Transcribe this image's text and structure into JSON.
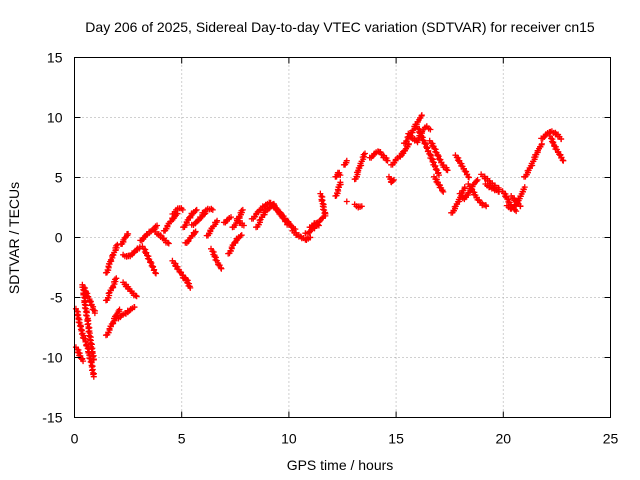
{
  "chart_data": {
    "type": "scatter",
    "title": "Day 206 of 2025, Sidereal Day-to-day VTEC variation (SDTVAR) for receiver cn15",
    "xlabel": "GPS time / hours",
    "ylabel": "SDTVAR / TECUs",
    "xlim": [
      0,
      25
    ],
    "ylim": [
      -15,
      15
    ],
    "xticks": [
      0,
      5,
      10,
      15,
      20,
      25
    ],
    "yticks": [
      -15,
      -10,
      -5,
      0,
      5,
      10,
      15
    ],
    "grid": true,
    "marker": "plus",
    "color": "#ff0000",
    "segments": [
      {
        "name": "seg-01",
        "x": [
          0.1,
          0.2,
          0.3,
          0.4,
          0.5,
          0.6,
          0.7,
          0.8,
          0.9
        ],
        "y": [
          -6.0,
          -6.8,
          -7.6,
          -8.2,
          -8.6,
          -9.1,
          -9.8,
          -10.6,
          -11.6
        ]
      },
      {
        "name": "seg-02",
        "x": [
          0.1,
          0.2,
          0.3,
          0.4
        ],
        "y": [
          -9.2,
          -9.6,
          -10.0,
          -10.3
        ]
      },
      {
        "name": "seg-03",
        "x": [
          0.4,
          0.5,
          0.6,
          0.7,
          0.8,
          0.9
        ],
        "y": [
          -4.2,
          -5.6,
          -6.8,
          -8.0,
          -9.2,
          -10.2
        ]
      },
      {
        "name": "seg-04",
        "x": [
          0.4,
          0.55,
          0.7,
          0.85,
          0.95
        ],
        "y": [
          -4.0,
          -4.6,
          -5.2,
          -5.8,
          -6.3
        ]
      },
      {
        "name": "seg-05",
        "x": [
          1.5,
          1.65,
          1.8,
          1.95,
          2.1
        ],
        "y": [
          -8.2,
          -7.6,
          -7.0,
          -6.5,
          -6.0
        ]
      },
      {
        "name": "seg-06",
        "x": [
          1.5,
          1.65,
          1.8,
          1.95
        ],
        "y": [
          -5.3,
          -4.6,
          -4.0,
          -3.4
        ]
      },
      {
        "name": "seg-07",
        "x": [
          1.5,
          1.6,
          1.7,
          1.8,
          1.9,
          2.0
        ],
        "y": [
          -3.0,
          -2.4,
          -1.8,
          -1.5,
          -1.0,
          -0.6
        ]
      },
      {
        "name": "seg-08",
        "x": [
          2.2,
          2.3,
          2.4,
          2.5
        ],
        "y": [
          -0.6,
          -0.2,
          0.1,
          0.3
        ]
      },
      {
        "name": "seg-09",
        "x": [
          2.0,
          2.2,
          2.4,
          2.6,
          2.8
        ],
        "y": [
          -6.8,
          -6.5,
          -6.3,
          -6.0,
          -5.8
        ]
      },
      {
        "name": "seg-10",
        "x": [
          2.3,
          2.45,
          2.6,
          2.75,
          2.9
        ],
        "y": [
          -3.8,
          -4.1,
          -4.4,
          -4.7,
          -4.9
        ]
      },
      {
        "name": "seg-11",
        "x": [
          2.3,
          2.45,
          2.6,
          2.75,
          2.9,
          3.05
        ],
        "y": [
          -1.5,
          -1.6,
          -1.5,
          -1.3,
          -1.0,
          -0.8
        ]
      },
      {
        "name": "seg-12",
        "x": [
          3.1,
          3.25,
          3.4,
          3.55,
          3.7,
          3.85
        ],
        "y": [
          -0.3,
          0.0,
          0.3,
          0.5,
          0.7,
          1.0
        ]
      },
      {
        "name": "seg-13",
        "x": [
          3.2,
          3.4,
          3.6,
          3.8
        ],
        "y": [
          -0.8,
          -1.5,
          -2.3,
          -3.0
        ]
      },
      {
        "name": "seg-14",
        "x": [
          3.8,
          3.95,
          4.1,
          4.25,
          4.4
        ],
        "y": [
          0.4,
          0.2,
          0.0,
          -0.3,
          -0.5
        ]
      },
      {
        "name": "seg-15",
        "x": [
          4.2,
          4.35,
          4.5,
          4.65,
          4.8
        ],
        "y": [
          0.5,
          1.0,
          1.4,
          1.7,
          2.0
        ]
      },
      {
        "name": "seg-16",
        "x": [
          4.6,
          4.75,
          4.9,
          5.05
        ],
        "y": [
          1.9,
          2.3,
          2.5,
          2.3
        ]
      },
      {
        "name": "seg-17",
        "x": [
          4.6,
          4.75,
          4.9,
          5.05,
          5.2
        ],
        "y": [
          -2.0,
          -2.4,
          -2.8,
          -3.2,
          -3.6
        ]
      },
      {
        "name": "seg-18",
        "x": [
          5.2,
          5.3,
          5.4
        ],
        "y": [
          -3.4,
          -3.8,
          -4.2
        ]
      },
      {
        "name": "seg-19",
        "x": [
          5.1,
          5.25,
          5.4,
          5.55,
          5.7
        ],
        "y": [
          0.8,
          1.3,
          1.8,
          2.1,
          2.3
        ]
      },
      {
        "name": "seg-20",
        "x": [
          5.2,
          5.35,
          5.5,
          5.65
        ],
        "y": [
          -0.5,
          -0.2,
          0.2,
          0.5
        ]
      },
      {
        "name": "seg-21",
        "x": [
          5.5,
          5.65,
          5.8,
          5.95,
          6.1
        ],
        "y": [
          1.0,
          1.2,
          1.5,
          1.8,
          2.0
        ]
      },
      {
        "name": "seg-22",
        "x": [
          6.0,
          6.15,
          6.3,
          6.45
        ],
        "y": [
          2.0,
          2.3,
          2.4,
          2.3
        ]
      },
      {
        "name": "seg-23",
        "x": [
          6.2,
          6.35,
          6.5,
          6.65
        ],
        "y": [
          0.1,
          0.6,
          1.0,
          1.4
        ]
      },
      {
        "name": "seg-24",
        "x": [
          6.4,
          6.55,
          6.7,
          6.85
        ],
        "y": [
          -1.0,
          -1.6,
          -2.2,
          -2.6
        ]
      },
      {
        "name": "seg-25",
        "x": [
          7.0,
          7.15,
          7.3
        ],
        "y": [
          1.2,
          1.5,
          1.7
        ]
      },
      {
        "name": "seg-26",
        "x": [
          7.2,
          7.35,
          7.5,
          7.65,
          7.8
        ],
        "y": [
          -1.4,
          -0.8,
          -0.3,
          0.0,
          0.2
        ]
      },
      {
        "name": "seg-27",
        "x": [
          7.4,
          7.55,
          7.7,
          7.85
        ],
        "y": [
          0.8,
          1.2,
          1.8,
          2.3
        ]
      },
      {
        "name": "seg-28",
        "x": [
          7.6,
          7.75,
          7.9
        ],
        "y": [
          1.5,
          1.2,
          1.0
        ]
      },
      {
        "name": "seg-29",
        "x": [
          8.3,
          8.5,
          8.7,
          8.9,
          9.1,
          9.3
        ],
        "y": [
          1.5,
          2.0,
          2.4,
          2.7,
          2.9,
          2.8
        ]
      },
      {
        "name": "seg-30",
        "x": [
          8.5,
          8.7,
          8.9,
          9.1,
          9.3,
          9.5,
          9.7,
          9.9,
          10.1
        ],
        "y": [
          0.8,
          1.5,
          2.2,
          2.5,
          2.7,
          2.2,
          1.8,
          1.4,
          1.0
        ]
      },
      {
        "name": "seg-31",
        "x": [
          9.3,
          9.5,
          9.7,
          9.9,
          10.1,
          10.3
        ],
        "y": [
          2.6,
          2.2,
          1.7,
          1.2,
          0.9,
          0.7
        ]
      },
      {
        "name": "seg-32",
        "x": [
          10.2,
          10.4,
          10.6,
          10.8,
          11.0
        ],
        "y": [
          0.5,
          0.2,
          0.0,
          -0.2,
          0.0
        ]
      },
      {
        "name": "seg-33",
        "x": [
          10.8,
          11.0,
          11.2,
          11.4,
          11.6
        ],
        "y": [
          0.3,
          0.5,
          0.9,
          1.3,
          1.7
        ]
      },
      {
        "name": "seg-34",
        "x": [
          11.0,
          11.2,
          11.4
        ],
        "y": [
          0.8,
          1.2,
          1.0
        ]
      },
      {
        "name": "seg-35",
        "x": [
          11.5,
          11.6,
          11.7
        ],
        "y": [
          3.6,
          2.6,
          1.8
        ]
      },
      {
        "name": "seg-36",
        "x": [
          12.2,
          12.3,
          12.4
        ],
        "y": [
          5.0,
          5.4,
          5.2
        ]
      },
      {
        "name": "seg-37",
        "x": [
          12.2,
          12.3,
          12.4
        ],
        "y": [
          3.4,
          4.0,
          4.6
        ]
      },
      {
        "name": "seg-38",
        "x": [
          12.6,
          12.7
        ],
        "y": [
          6.0,
          6.4
        ]
      },
      {
        "name": "seg-39",
        "x": [
          12.7
        ],
        "y": [
          3.0
        ]
      },
      {
        "name": "seg-40",
        "x": [
          13.1,
          13.25,
          13.4
        ],
        "y": [
          2.7,
          2.5,
          2.6
        ]
      },
      {
        "name": "seg-41",
        "x": [
          13.1,
          13.25,
          13.4,
          13.55
        ],
        "y": [
          4.8,
          5.6,
          6.4,
          7.0
        ]
      },
      {
        "name": "seg-42",
        "x": [
          13.8,
          14.0,
          14.2,
          14.4,
          14.6
        ],
        "y": [
          6.6,
          7.0,
          7.2,
          6.8,
          6.4
        ]
      },
      {
        "name": "seg-43",
        "x": [
          14.7,
          14.8,
          14.9
        ],
        "y": [
          5.0,
          4.6,
          4.8
        ]
      },
      {
        "name": "seg-44",
        "x": [
          14.8,
          15.0,
          15.2,
          15.4,
          15.6
        ],
        "y": [
          6.0,
          6.5,
          6.8,
          7.2,
          7.8
        ]
      },
      {
        "name": "seg-45",
        "x": [
          15.4,
          15.6,
          15.8,
          16.0,
          16.2
        ],
        "y": [
          7.8,
          8.4,
          9.0,
          9.6,
          10.2
        ]
      },
      {
        "name": "seg-46",
        "x": [
          15.6,
          15.8,
          16.0,
          16.2,
          16.4,
          16.6
        ],
        "y": [
          8.6,
          8.2,
          8.0,
          8.8,
          9.3,
          9.0
        ]
      },
      {
        "name": "seg-47",
        "x": [
          16.0,
          16.2,
          16.4,
          16.6,
          16.8,
          17.0
        ],
        "y": [
          9.2,
          8.4,
          7.6,
          6.8,
          6.0,
          5.2
        ]
      },
      {
        "name": "seg-48",
        "x": [
          16.6,
          16.8,
          17.0,
          17.2,
          17.4
        ],
        "y": [
          8.0,
          7.4,
          6.6,
          6.0,
          5.6
        ]
      },
      {
        "name": "seg-49",
        "x": [
          16.8,
          17.0,
          17.2
        ],
        "y": [
          5.0,
          4.4,
          3.8
        ]
      },
      {
        "name": "seg-50",
        "x": [
          17.6,
          17.8,
          18.0,
          18.2
        ],
        "y": [
          2.0,
          2.6,
          3.4,
          4.2
        ]
      },
      {
        "name": "seg-51",
        "x": [
          17.8,
          18.0,
          18.2,
          18.4
        ],
        "y": [
          6.8,
          6.2,
          5.6,
          5.0
        ]
      },
      {
        "name": "seg-52",
        "x": [
          18.0,
          18.2,
          18.4,
          18.6,
          18.8
        ],
        "y": [
          3.6,
          3.2,
          3.8,
          4.4,
          4.8
        ]
      },
      {
        "name": "seg-53",
        "x": [
          18.4,
          18.6,
          18.8,
          19.0,
          19.2
        ],
        "y": [
          4.4,
          3.8,
          3.2,
          2.8,
          2.6
        ]
      },
      {
        "name": "seg-54",
        "x": [
          19.0,
          19.2,
          19.4,
          19.6,
          19.8
        ],
        "y": [
          5.2,
          4.9,
          4.6,
          4.3,
          4.0
        ]
      },
      {
        "name": "seg-55",
        "x": [
          19.2,
          19.4,
          19.6,
          19.8
        ],
        "y": [
          4.4,
          4.2,
          4.0,
          3.8
        ]
      },
      {
        "name": "seg-56",
        "x": [
          20.0,
          20.2,
          20.4,
          20.6
        ],
        "y": [
          3.8,
          3.2,
          2.6,
          2.2
        ]
      },
      {
        "name": "seg-57",
        "x": [
          20.2,
          20.4,
          20.6,
          20.8,
          21.0
        ],
        "y": [
          2.6,
          2.4,
          2.8,
          3.4,
          4.2
        ]
      },
      {
        "name": "seg-58",
        "x": [
          20.4,
          20.6,
          20.8
        ],
        "y": [
          3.4,
          3.0,
          2.6
        ]
      },
      {
        "name": "seg-59",
        "x": [
          21.0,
          21.2,
          21.4,
          21.6,
          21.8
        ],
        "y": [
          5.0,
          5.6,
          6.4,
          7.2,
          7.8
        ]
      },
      {
        "name": "seg-60",
        "x": [
          21.8,
          22.0,
          22.2
        ],
        "y": [
          8.2,
          8.6,
          8.8
        ]
      },
      {
        "name": "seg-61",
        "x": [
          22.2,
          22.4,
          22.6,
          22.8
        ],
        "y": [
          8.4,
          7.6,
          7.0,
          6.4
        ]
      },
      {
        "name": "seg-62",
        "x": [
          22.3,
          22.5,
          22.7
        ],
        "y": [
          8.8,
          8.6,
          8.2
        ]
      }
    ]
  }
}
